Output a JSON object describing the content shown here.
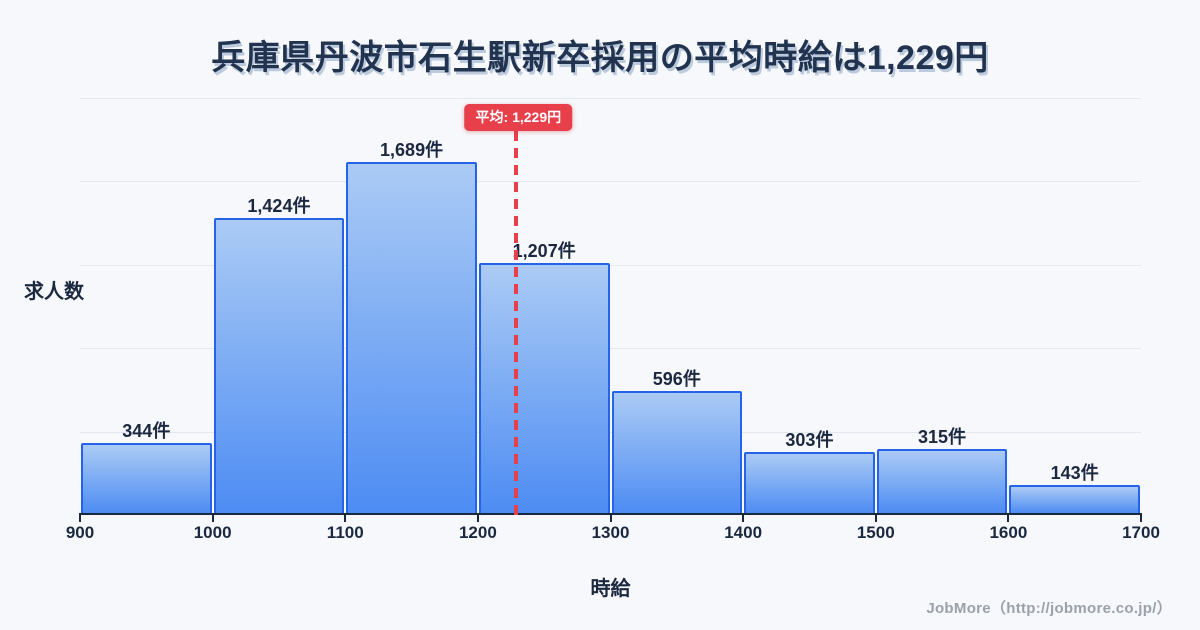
{
  "title": "兵庫県丹波市石生駅新卒採用の平均時給は1,229円",
  "chart_data": {
    "type": "bar",
    "title": "兵庫県丹波市石生駅新卒採用の平均時給は1,229円",
    "xlabel": "時給",
    "ylabel": "求人数",
    "bin_edges": [
      900,
      1000,
      1100,
      1200,
      1300,
      1400,
      1500,
      1600,
      1700
    ],
    "x_tick_labels": [
      "900",
      "1000",
      "1100",
      "1200",
      "1300",
      "1400",
      "1500",
      "1600",
      "1700"
    ],
    "categories": [
      "900-1000",
      "1000-1100",
      "1100-1200",
      "1200-1300",
      "1300-1400",
      "1400-1500",
      "1500-1600",
      "1600-1700"
    ],
    "values": [
      344,
      1424,
      1689,
      1207,
      596,
      303,
      315,
      143
    ],
    "bar_labels": [
      "344件",
      "1,424件",
      "1,689件",
      "1,207件",
      "596件",
      "303件",
      "315件",
      "143件"
    ],
    "mean_value": 1229,
    "mean_label": "平均: 1,229円",
    "ylim": [
      0,
      2000
    ],
    "gridline_values": [
      400,
      800,
      1200,
      1600,
      2000
    ],
    "grid": true,
    "legend": false
  },
  "colors": {
    "background": "#f7f8fb",
    "title_text": "#21334f",
    "bar_fill_top": "#abcbf5",
    "bar_fill_bottom": "#4d8cf3",
    "bar_border": "#2563e8",
    "gridline": "#e3e7ef",
    "axis": "#1b2940",
    "label_text": "#1b2840",
    "mean_red": "#e8404a",
    "badge_text": "#ffffff",
    "footer_text": "#9ba1ab"
  },
  "footer": {
    "credit": "JobMore（http://jobmore.co.jp/）"
  }
}
